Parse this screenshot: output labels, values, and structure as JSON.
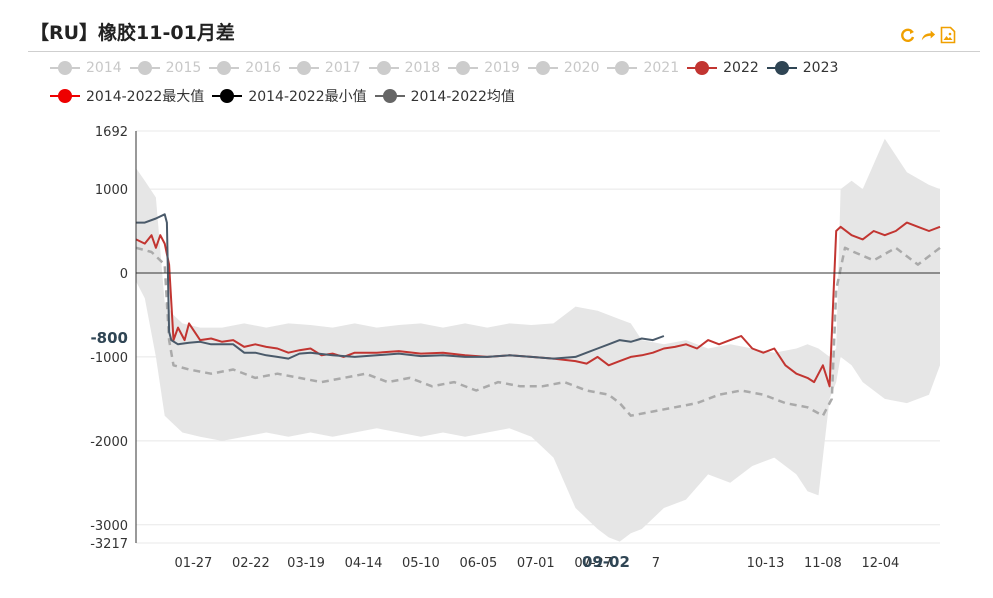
{
  "title": "【RU】橡胶11-01月差",
  "toolbar": {
    "icons": [
      "refresh-icon",
      "share-icon",
      "save-image-icon"
    ],
    "accent": "#f0a000"
  },
  "legend": {
    "row1": [
      {
        "label": "2014",
        "color": "#cccccc",
        "active": false
      },
      {
        "label": "2015",
        "color": "#cccccc",
        "active": false
      },
      {
        "label": "2016",
        "color": "#cccccc",
        "active": false
      },
      {
        "label": "2017",
        "color": "#cccccc",
        "active": false
      },
      {
        "label": "2018",
        "color": "#cccccc",
        "active": false
      },
      {
        "label": "2019",
        "color": "#cccccc",
        "active": false
      },
      {
        "label": "2020",
        "color": "#cccccc",
        "active": false
      },
      {
        "label": "2021",
        "color": "#cccccc",
        "active": false
      },
      {
        "label": "2022",
        "color": "#c23531",
        "active": true
      },
      {
        "label": "2023",
        "color": "#2f4554",
        "active": true
      }
    ],
    "row2": [
      {
        "label": "2014-2022最大值",
        "color": "#ee0000",
        "active": true
      },
      {
        "label": "2014-2022最小值",
        "color": "#000000",
        "active": true
      },
      {
        "label": "2014-2022均值",
        "color": "#666666",
        "active": true
      }
    ]
  },
  "chart_data": {
    "type": "line",
    "title": "【RU】橡胶11-01月差",
    "xlabel": "",
    "ylabel": "",
    "ylim": [
      -3217,
      1692
    ],
    "yticks": [
      1692,
      1000,
      0,
      -1000,
      -2000,
      -3000,
      -3217
    ],
    "xlim": [
      1,
      365
    ],
    "xticks": [
      {
        "label": "01-27",
        "day": 27
      },
      {
        "label": "02-22",
        "day": 53
      },
      {
        "label": "03-19",
        "day": 78
      },
      {
        "label": "04-14",
        "day": 104
      },
      {
        "label": "05-10",
        "day": 130
      },
      {
        "label": "06-05",
        "day": 156
      },
      {
        "label": "07-01",
        "day": 182
      },
      {
        "label": "07-27",
        "day": 208
      },
      {
        "label": "10-13",
        "day": 286
      },
      {
        "label": "11-08",
        "day": 312
      },
      {
        "label": "12-04",
        "day": 338
      }
    ],
    "pointer": {
      "x_label": "09-02",
      "x_extra": "7",
      "day": 245,
      "y_label": "-800",
      "y": -800
    },
    "grid": true,
    "legend_position": "top",
    "series": [
      {
        "name": "2014-2022最大值/最小值 (区间)",
        "type": "band",
        "color": "#e6e6e6",
        "x": [
          1,
          5,
          10,
          14,
          18,
          22,
          30,
          40,
          50,
          60,
          70,
          80,
          90,
          100,
          110,
          120,
          130,
          140,
          150,
          160,
          170,
          180,
          190,
          200,
          210,
          215,
          220,
          225,
          230,
          240,
          250,
          260,
          270,
          280,
          290,
          300,
          305,
          310,
          315,
          318,
          320,
          325,
          330,
          340,
          350,
          360,
          365
        ],
        "upper": [
          1250,
          1100,
          900,
          -350,
          -500,
          -600,
          -650,
          -650,
          -600,
          -650,
          -600,
          -620,
          -650,
          -600,
          -650,
          -620,
          -600,
          -650,
          -600,
          -650,
          -600,
          -620,
          -600,
          -400,
          -450,
          -500,
          -550,
          -600,
          -800,
          -850,
          -800,
          -900,
          -850,
          -900,
          -950,
          -900,
          -850,
          -900,
          -1000,
          -900,
          1000,
          1100,
          1000,
          1600,
          1200,
          1050,
          1000
        ],
        "lower": [
          -100,
          -300,
          -1000,
          -1700,
          -1800,
          -1900,
          -1950,
          -2000,
          -1950,
          -1900,
          -1950,
          -1900,
          -1950,
          -1900,
          -1850,
          -1900,
          -1950,
          -1900,
          -1950,
          -1900,
          -1850,
          -1950,
          -2200,
          -2800,
          -3050,
          -3150,
          -3200,
          -3100,
          -3050,
          -2800,
          -2700,
          -2400,
          -2500,
          -2300,
          -2200,
          -2400,
          -2600,
          -2650,
          -1500,
          -1300,
          -1000,
          -1100,
          -1300,
          -1500,
          -1550,
          -1450,
          -1100
        ]
      },
      {
        "name": "2014-2022均值",
        "type": "line",
        "color": "#aaaaaa",
        "dashed": true,
        "x": [
          1,
          8,
          14,
          16,
          18,
          25,
          35,
          45,
          55,
          65,
          75,
          85,
          95,
          105,
          115,
          125,
          135,
          145,
          155,
          165,
          175,
          185,
          195,
          205,
          215,
          220,
          225,
          235,
          245,
          255,
          265,
          275,
          285,
          295,
          305,
          312,
          316,
          318,
          322,
          326,
          335,
          345,
          355,
          365
        ],
        "values": [
          300,
          250,
          100,
          -800,
          -1100,
          -1150,
          -1200,
          -1150,
          -1250,
          -1200,
          -1250,
          -1300,
          -1250,
          -1200,
          -1300,
          -1250,
          -1350,
          -1300,
          -1400,
          -1300,
          -1350,
          -1350,
          -1300,
          -1400,
          -1450,
          -1550,
          -1700,
          -1650,
          -1600,
          -1550,
          -1450,
          -1400,
          -1450,
          -1550,
          -1600,
          -1700,
          -1500,
          -200,
          300,
          250,
          150,
          300,
          100,
          300
        ]
      },
      {
        "name": "2022",
        "type": "line",
        "color": "#c23531",
        "x": [
          1,
          5,
          8,
          10,
          12,
          14,
          16,
          18,
          20,
          23,
          25,
          30,
          35,
          40,
          45,
          50,
          55,
          60,
          65,
          70,
          75,
          80,
          85,
          90,
          95,
          100,
          110,
          120,
          130,
          140,
          150,
          160,
          170,
          180,
          190,
          200,
          205,
          210,
          215,
          220,
          225,
          230,
          235,
          240,
          245,
          250,
          255,
          260,
          265,
          270,
          275,
          280,
          285,
          290,
          295,
          300,
          305,
          308,
          312,
          315,
          318,
          320,
          325,
          330,
          335,
          340,
          345,
          350,
          355,
          360,
          365
        ],
        "values": [
          400,
          350,
          450,
          300,
          450,
          350,
          100,
          -800,
          -650,
          -800,
          -600,
          -800,
          -780,
          -820,
          -800,
          -880,
          -850,
          -880,
          -900,
          -950,
          -920,
          -900,
          -980,
          -960,
          -1000,
          -950,
          -950,
          -930,
          -960,
          -950,
          -980,
          -1000,
          -980,
          -1000,
          -1020,
          -1050,
          -1080,
          -1000,
          -1100,
          -1050,
          -1000,
          -980,
          -950,
          -900,
          -880,
          -850,
          -900,
          -800,
          -850,
          -800,
          -750,
          -900,
          -950,
          -900,
          -1100,
          -1200,
          -1250,
          -1300,
          -1100,
          -1350,
          500,
          550,
          450,
          400,
          500,
          450,
          500,
          600,
          550,
          500,
          550
        ]
      },
      {
        "name": "2023",
        "type": "line",
        "color": "#4a5a6a",
        "x": [
          1,
          5,
          10,
          14,
          15,
          16,
          17,
          20,
          25,
          30,
          35,
          40,
          45,
          50,
          55,
          60,
          65,
          70,
          75,
          80,
          90,
          100,
          110,
          120,
          130,
          140,
          150,
          160,
          170,
          180,
          190,
          200,
          205,
          210,
          215,
          220,
          225,
          230,
          235,
          240
        ],
        "values": [
          600,
          600,
          650,
          700,
          600,
          -700,
          -800,
          -850,
          -830,
          -820,
          -850,
          -850,
          -850,
          -950,
          -950,
          -980,
          -1000,
          -1020,
          -960,
          -950,
          -980,
          -1000,
          -980,
          -960,
          -990,
          -980,
          -1000,
          -1000,
          -980,
          -1000,
          -1020,
          -1000,
          -950,
          -900,
          -850,
          -800,
          -820,
          -780,
          -800,
          -750
        ]
      }
    ]
  }
}
